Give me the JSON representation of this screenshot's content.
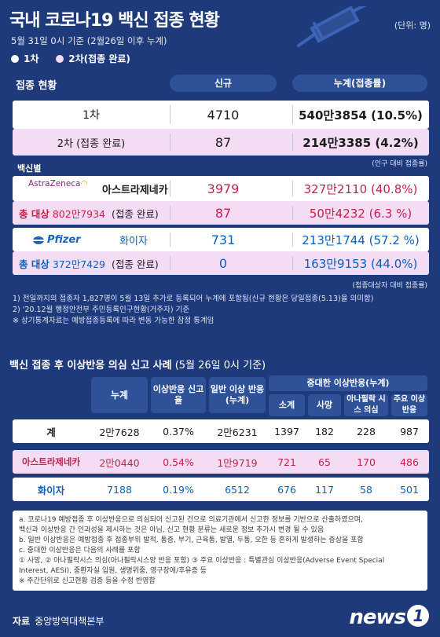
{
  "title": "국내 코로나19 백신 접종 현황",
  "unit": "(단위: 명)",
  "subtitle": "5월 31일 0시 기준 (2월26일 이후 누계)",
  "legend": [
    {
      "label": "1차",
      "color": "#ffffff"
    },
    {
      "label": "2차(접종 완료)",
      "color": "#f4dcf4"
    }
  ],
  "section1": {
    "label": "접종 현황",
    "col_new": "신규",
    "col_total": "누계(접종률)",
    "rows": [
      {
        "name": "1차",
        "new": "4710",
        "total": "540만3854 (10.5%)"
      },
      {
        "name": "2차 (접종 완료)",
        "new": "87",
        "total": "214만3385 (4.2%)"
      }
    ],
    "pop_note": "(인구 대비 접종률)",
    "vaccine_label": "백신별",
    "az": {
      "logo_text": "AstraZeneca",
      "name": "아스트라제네카",
      "new1": "3979",
      "total1": "327만2110 (40.8%)",
      "target_label": "총 대상",
      "target": "802만7934",
      "complete": "(접종 완료)",
      "new2": "87",
      "total2": "50만4232 (6.3 %)"
    },
    "pfizer": {
      "logo_text": "Pfizer",
      "name": "화이자",
      "new1": "731",
      "total1": "213만1744 (57.2 %)",
      "target_label": "총 대상",
      "target": "372만7429",
      "complete": "(접종 완료)",
      "new2": "0",
      "total2": "163만9153 (44.0%)"
    },
    "target_note": "(접종대상자 대비 접종률)",
    "footnotes": [
      "1) 전일까지의 접종자 1,827명이 5월 13일 추가로 등록되어 누계에 포함됨(신규 현황은 당일접종(5.13)을 의미함)",
      "2) '20.12월 행정안전부 주민등록인구현황(거주자) 기준",
      "※ 상기통계자료는 예방접종등록에 따라 변동 가능한 잠정 통계임"
    ]
  },
  "section2": {
    "title_bold": "백신 접종 후 이상반응 의심 신고 사례",
    "title_rest": "(5월 26일 0시 기준)",
    "headers": {
      "total": "누계",
      "rate": "이상반응 신고율",
      "general": "일반 이상 반응(누계)",
      "serious": "중대한 이상반응(누계)",
      "sub": [
        "소계",
        "사망",
        "아나필락 시스 의심",
        "주요 이상반응"
      ]
    },
    "rows": [
      {
        "name": "계",
        "total": "2만7628",
        "rate": "0.37%",
        "general": "2만6231",
        "sub": "1397",
        "death": "182",
        "ana": "228",
        "major": "987"
      },
      {
        "name": "아스트라제네카",
        "total": "2만0440",
        "rate": "0.54%",
        "general": "1만9719",
        "sub": "721",
        "death": "65",
        "ana": "170",
        "major": "486"
      },
      {
        "name": "화이자",
        "total": "7188",
        "rate": "0.19%",
        "general": "6512",
        "sub": "676",
        "death": "117",
        "ana": "58",
        "major": "501"
      }
    ],
    "notes": [
      "a. 코로나19 예방접종 후 이상반응으로 의심되어 신고된 건으로 의료기관에서 신고한 정보를 기반으로 산출하였으며,",
      "백신과 이상반응 간 인과성을 제시하는 것은 아님, 신고 현황 분류는 새로운 정보 추가시 변경 될 수 있음",
      "b. 일반 이상반응은 예방접종 후 접종부위 발적, 통증, 부기, 근육통, 발열, 두통, 오한 등 흔하게 발생하는 증상을 포함",
      "c. 중대한 이상반응은 다음의 사례를 포함",
      "① 사망, ② 아나필락시스 의심(아나필락시스양 반응 포함) ③ 주요 이상반응 : 특별관심 이상반응(Adverse Event Special",
      "Interest, AESI), 중환자실 입원, 생명위중, 영구장애/후유증 등",
      "※ 주간단위로 신고현황 검증 등을 수정 반영함"
    ]
  },
  "source_label": "자료",
  "source": "중앙방역대책본부",
  "brand": "news",
  "brand_num": "1",
  "colors": {
    "background": "#1e3a7b",
    "pill": "#2f5197",
    "pink_row": "#f4dcf4",
    "blue_text": "#0e5fb3",
    "red_text": "#c3224a"
  }
}
